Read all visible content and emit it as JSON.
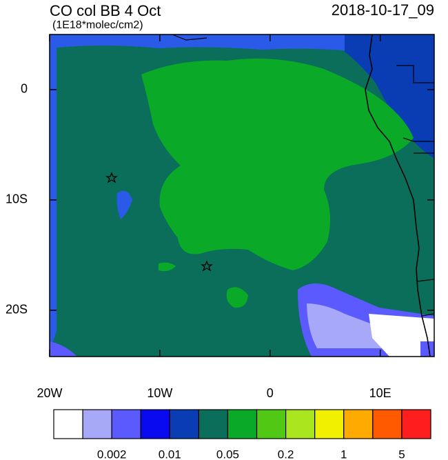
{
  "header": {
    "title": "CO col BB 4 Oct",
    "units": "(1E18*molec/cm2)",
    "date": "2018-10-17_09"
  },
  "map": {
    "xlim": [
      -20,
      14.9
    ],
    "ylim": [
      -24.2,
      5
    ],
    "xticks": [
      {
        "value": -20,
        "label": "20W"
      },
      {
        "value": -10,
        "label": "10W"
      },
      0,
      {
        "value": 10,
        "label": "10E"
      }
    ],
    "yticks": [
      0,
      {
        "value": -10,
        "label": "10S"
      },
      {
        "value": -20,
        "label": "20S"
      }
    ]
  },
  "colorbar": {
    "colors": [
      "#ffffff",
      "#a8a8f8",
      "#5a5aff",
      "#0a0af0",
      "#0a3cb4",
      "#0a6e5a",
      "#0aaa28",
      "#50c814",
      "#aae61e",
      "#f0f000",
      "#ffaa00",
      "#ff5a00",
      "#ff1e1e"
    ],
    "labels": [
      0.002,
      0.01,
      0.05,
      0.2,
      1,
      5
    ]
  }
}
